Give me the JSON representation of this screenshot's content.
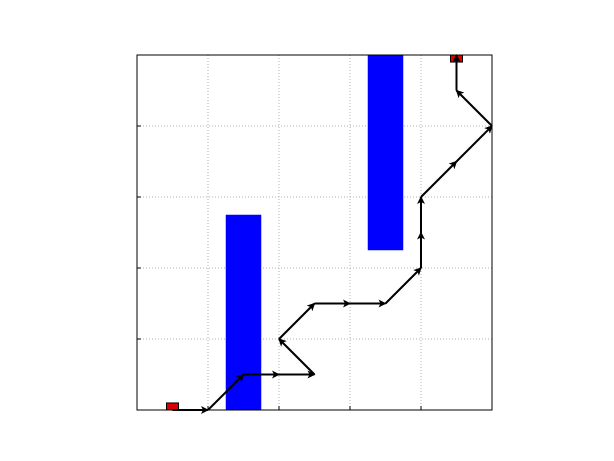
{
  "chart_data": {
    "type": "line",
    "title": "",
    "xlabel": "",
    "ylabel": "",
    "xlim": [
      0,
      5
    ],
    "ylim": [
      0,
      5
    ],
    "grid": true,
    "x_ticks": [
      0,
      1,
      2,
      3,
      4,
      5
    ],
    "y_ticks": [
      0,
      1,
      2,
      3,
      4,
      5
    ],
    "x_tick_labels": [
      "",
      "",
      "",
      "",
      "",
      ""
    ],
    "y_tick_labels": [
      "",
      "",
      "",
      "",
      "",
      ""
    ],
    "obstacles": [
      {
        "x0": 1.25,
        "x1": 1.75,
        "y0": 0,
        "y1": 2.75,
        "color": "#0000ff"
      },
      {
        "x0": 3.25,
        "x1": 3.75,
        "y0": 2.25,
        "y1": 5,
        "color": "#0000ff"
      }
    ],
    "markers": [
      {
        "role": "start",
        "x": 0.5,
        "y": 0.05,
        "color": "#dd0000"
      },
      {
        "role": "goal",
        "x": 4.5,
        "y": 4.95,
        "color": "#dd0000"
      }
    ],
    "path": {
      "color": "#000000",
      "points": [
        [
          0.5,
          0
        ],
        [
          1,
          0
        ],
        [
          1.5,
          0.5
        ],
        [
          2,
          0.5
        ],
        [
          2.5,
          0.5
        ],
        [
          2,
          1
        ],
        [
          2.5,
          1.5
        ],
        [
          3,
          1.5
        ],
        [
          3.5,
          1.5
        ],
        [
          4,
          2
        ],
        [
          4,
          2.5
        ],
        [
          4,
          3
        ],
        [
          4,
          3
        ],
        [
          4.5,
          3.5
        ],
        [
          5,
          4
        ],
        [
          4.5,
          4.5
        ],
        [
          4.5,
          5
        ]
      ]
    }
  }
}
